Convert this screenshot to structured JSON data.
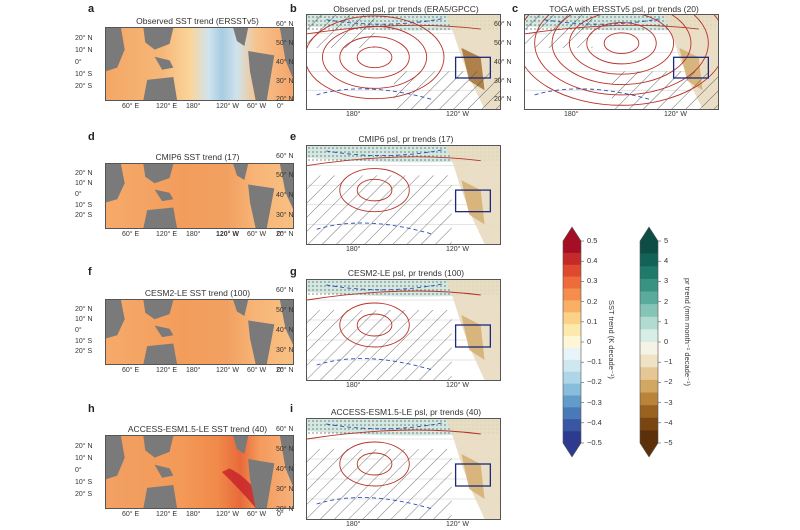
{
  "panels": {
    "a": {
      "label": "a",
      "title": "Observed SST trend (ERSSTv5)"
    },
    "b": {
      "label": "b",
      "title": "Observed psl, pr trends (ERA5/GPCC)"
    },
    "c": {
      "label": "c",
      "title": "TOGA with ERSSTv5 psl, pr trends (20)"
    },
    "d": {
      "label": "d",
      "title": "CMIP6 SST trend (17)"
    },
    "e": {
      "label": "e",
      "title": "CMIP6 psl, pr trends (17)"
    },
    "f": {
      "label": "f",
      "title": "CESM2-LE SST trend (100)"
    },
    "g": {
      "label": "g",
      "title": "CESM2-LE psl, pr trends (100)"
    },
    "h": {
      "label": "h",
      "title": "ACCESS-ESM1.5-LE SST trend (40)"
    },
    "i": {
      "label": "i",
      "title": "ACCESS-ESM1.5-LE psl, pr trends (40)"
    }
  },
  "sst_axes": {
    "lat": [
      "20° N",
      "10° N",
      "0°",
      "10° S",
      "20° S"
    ],
    "lon": [
      "60° E",
      "120° E",
      "180°",
      "120° W",
      "60° W",
      "0°"
    ]
  },
  "psl_axes": {
    "lat": [
      "60° N",
      "50° N",
      "40° N",
      "30° N",
      "20° N"
    ],
    "lon": [
      "180°",
      "120° W"
    ]
  },
  "colorbar_sst": {
    "title": "SST trend (K decade⁻¹)",
    "ticks": [
      "0.5",
      "0.4",
      "0.3",
      "0.2",
      "0.1",
      "0",
      "−0.1",
      "−0.2",
      "−0.3",
      "−0.4",
      "−0.5"
    ],
    "colors": [
      "#a50f26",
      "#c52a2a",
      "#de4a30",
      "#ee6b3b",
      "#f58e4c",
      "#f9b066",
      "#fcd188",
      "#fde9ac",
      "#fff6d6",
      "#e9f4f8",
      "#cfe8f0",
      "#aed6e8",
      "#88bddc",
      "#619ccb",
      "#4a79b8",
      "#3a55a4",
      "#2c3a8f"
    ]
  },
  "colorbar_pr": {
    "title": "pr trend (mm month⁻¹ decade⁻¹)",
    "ticks": [
      "5",
      "4",
      "3",
      "2",
      "1",
      "0",
      "−1",
      "−2",
      "−3",
      "−4",
      "−5"
    ],
    "colors": [
      "#0d4d45",
      "#136257",
      "#1f7a6b",
      "#399383",
      "#5aab9c",
      "#85c4b6",
      "#b1dbd0",
      "#d8ede6",
      "#f5f2e6",
      "#f0e2c4",
      "#e4c795",
      "#d2a764",
      "#b9843a",
      "#9a6220",
      "#7a4511",
      "#5c3008"
    ]
  }
}
